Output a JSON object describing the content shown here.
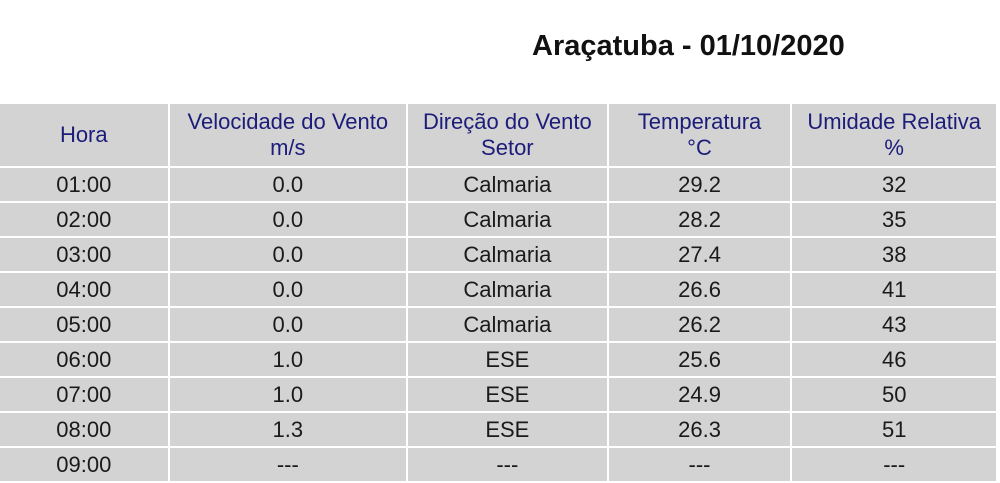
{
  "title": "Araçatuba - 01/10/2020",
  "columns": [
    {
      "label": "Hora",
      "unit": ""
    },
    {
      "label": "Velocidade do Vento",
      "unit": "m/s"
    },
    {
      "label": "Direção do Vento",
      "unit": "Setor"
    },
    {
      "label": "Temperatura",
      "unit": "°C"
    },
    {
      "label": "Umidade Relativa",
      "unit": "%"
    }
  ],
  "rows": [
    [
      "01:00",
      "0.0",
      "Calmaria",
      "29.2",
      "32"
    ],
    [
      "02:00",
      "0.0",
      "Calmaria",
      "28.2",
      "35"
    ],
    [
      "03:00",
      "0.0",
      "Calmaria",
      "27.4",
      "38"
    ],
    [
      "04:00",
      "0.0",
      "Calmaria",
      "26.6",
      "41"
    ],
    [
      "05:00",
      "0.0",
      "Calmaria",
      "26.2",
      "43"
    ],
    [
      "06:00",
      "1.0",
      "ESE",
      "25.6",
      "46"
    ],
    [
      "07:00",
      "1.0",
      "ESE",
      "24.9",
      "50"
    ],
    [
      "08:00",
      "1.3",
      "ESE",
      "26.3",
      "51"
    ],
    [
      "09:00",
      "---",
      "---",
      "---",
      "---"
    ]
  ],
  "colors": {
    "cell_bg": "#d3d3d3",
    "header_text": "#1c1c7a"
  }
}
